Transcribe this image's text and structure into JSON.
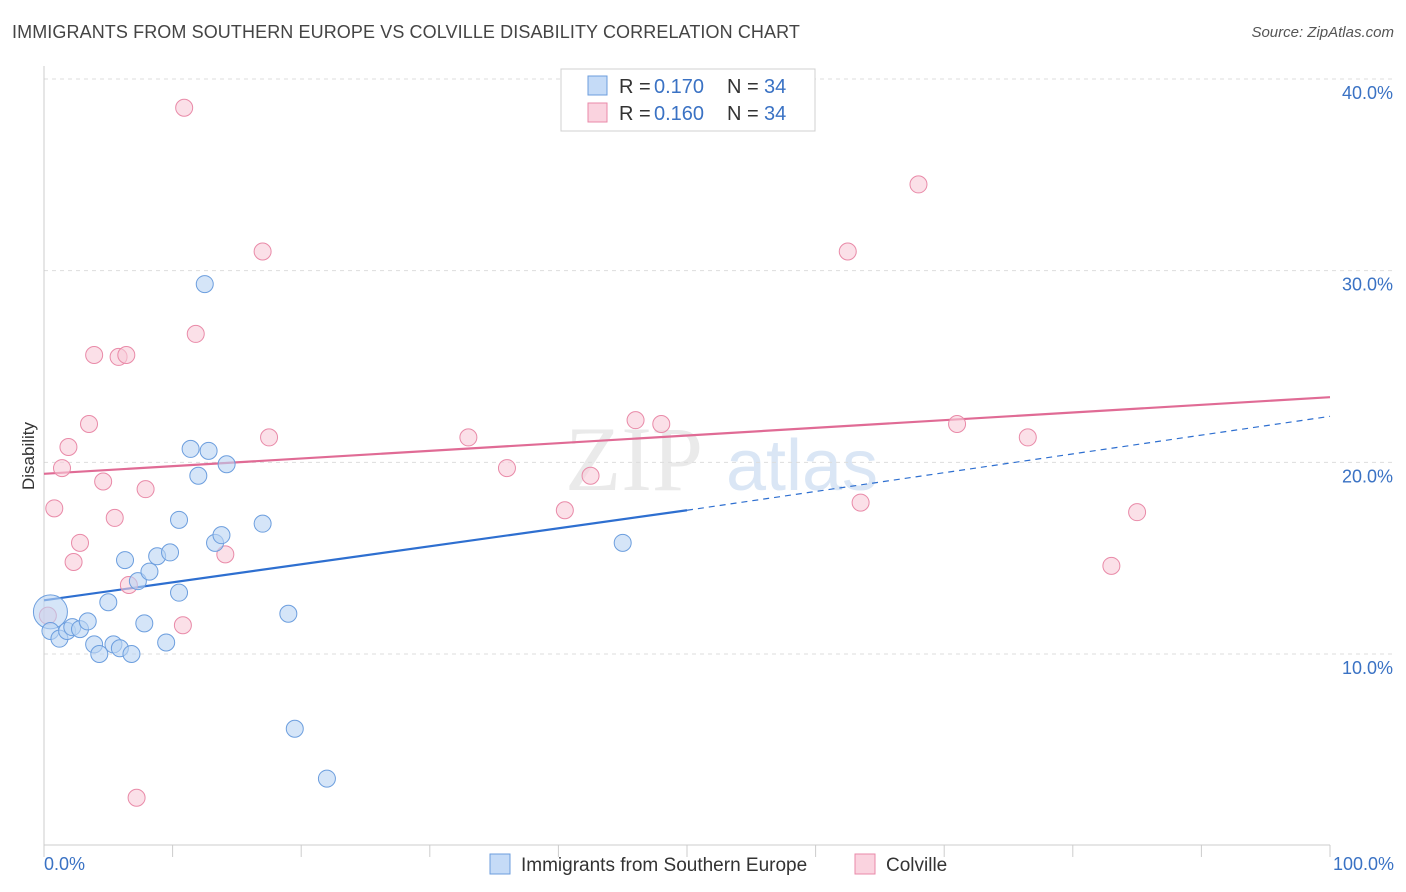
{
  "header": {
    "title": "IMMIGRANTS FROM SOUTHERN EUROPE VS COLVILLE DISABILITY CORRELATION CHART",
    "source": "Source: ZipAtlas.com"
  },
  "watermark": {
    "zip": "ZIP",
    "atlas": "atlas"
  },
  "legend": {
    "rows": [
      {
        "r_label": "R = ",
        "r_value": "0.170",
        "n_label": "N = ",
        "n_value": "34",
        "color": "#a9c8f0",
        "stroke": "#6c9ede"
      },
      {
        "r_label": "R = ",
        "r_value": "0.160",
        "n_label": "N = ",
        "n_value": "34",
        "color": "#f6bfd0",
        "stroke": "#e98aa8"
      }
    ]
  },
  "bottom_legend": {
    "items": [
      {
        "label": "Immigrants from Southern Europe",
        "color": "#c5dbf7",
        "stroke": "#6c9ede"
      },
      {
        "label": "Colville",
        "color": "#fad3df",
        "stroke": "#e98aa8"
      }
    ]
  },
  "chart_data": {
    "type": "scatter",
    "title": "IMMIGRANTS FROM SOUTHERN EUROPE VS COLVILLE DISABILITY CORRELATION CHART",
    "xlabel": "",
    "ylabel": "Disability",
    "xlim": [
      0,
      100
    ],
    "ylim": [
      0,
      42
    ],
    "x_tick_labels": [
      "0.0%",
      "100.0%"
    ],
    "y_ticks": [
      10,
      20,
      30,
      40
    ],
    "y_tick_labels": [
      "10.0%",
      "20.0%",
      "30.0%",
      "40.0%"
    ],
    "grid": true,
    "series": [
      {
        "name": "Immigrants from Southern Europe",
        "color": "#6c9ede",
        "fill": "#b9d3f4",
        "trend": {
          "x0": 0,
          "y0": 12.8,
          "x1": 50,
          "y1": 17.5,
          "dash_to_x": 100,
          "dash_to_y": 22.4,
          "color": "#2e6fd0"
        },
        "points": [
          [
            0.5,
            12.2
          ],
          [
            0.5,
            11.2
          ],
          [
            1.2,
            10.8
          ],
          [
            1.8,
            11.2
          ],
          [
            2.2,
            11.4
          ],
          [
            2.8,
            11.3
          ],
          [
            3.4,
            11.7
          ],
          [
            3.9,
            10.5
          ],
          [
            4.3,
            10.0
          ],
          [
            5.0,
            12.7
          ],
          [
            5.4,
            10.5
          ],
          [
            5.9,
            10.3
          ],
          [
            6.3,
            14.9
          ],
          [
            6.8,
            10.0
          ],
          [
            7.3,
            13.8
          ],
          [
            7.8,
            11.6
          ],
          [
            8.2,
            14.3
          ],
          [
            8.8,
            15.1
          ],
          [
            9.5,
            10.6
          ],
          [
            9.8,
            15.3
          ],
          [
            10.5,
            13.2
          ],
          [
            10.5,
            17.0
          ],
          [
            11.4,
            20.7
          ],
          [
            12.0,
            19.3
          ],
          [
            12.5,
            29.3
          ],
          [
            12.8,
            20.6
          ],
          [
            13.3,
            15.8
          ],
          [
            13.8,
            16.2
          ],
          [
            14.2,
            19.9
          ],
          [
            17.0,
            16.8
          ],
          [
            19.0,
            12.1
          ],
          [
            19.5,
            6.1
          ],
          [
            22.0,
            3.5
          ],
          [
            45.0,
            15.8
          ]
        ]
      },
      {
        "name": "Colville",
        "color": "#e98aa8",
        "fill": "#f9cbd9",
        "trend": {
          "x0": 0,
          "y0": 19.4,
          "x1": 100,
          "y1": 23.4,
          "color": "#e06b95"
        },
        "points": [
          [
            0.3,
            12.0
          ],
          [
            0.8,
            17.6
          ],
          [
            1.4,
            19.7
          ],
          [
            1.9,
            20.8
          ],
          [
            2.3,
            14.8
          ],
          [
            2.8,
            15.8
          ],
          [
            3.5,
            22.0
          ],
          [
            3.9,
            25.6
          ],
          [
            4.6,
            19.0
          ],
          [
            5.5,
            17.1
          ],
          [
            5.8,
            25.5
          ],
          [
            6.4,
            25.6
          ],
          [
            6.6,
            13.6
          ],
          [
            7.2,
            2.5
          ],
          [
            7.9,
            18.6
          ],
          [
            10.9,
            38.5
          ],
          [
            10.8,
            11.5
          ],
          [
            11.8,
            26.7
          ],
          [
            14.1,
            15.2
          ],
          [
            17.0,
            31.0
          ],
          [
            17.5,
            21.3
          ],
          [
            33.0,
            21.3
          ],
          [
            36.0,
            19.7
          ],
          [
            40.5,
            17.5
          ],
          [
            42.5,
            19.3
          ],
          [
            46.0,
            22.2
          ],
          [
            48.0,
            22.0
          ],
          [
            62.5,
            31.0
          ],
          [
            63.5,
            17.9
          ],
          [
            68.0,
            34.5
          ],
          [
            71.0,
            22.0
          ],
          [
            76.5,
            21.3
          ],
          [
            83.0,
            14.6
          ],
          [
            85.0,
            17.4
          ]
        ]
      }
    ]
  }
}
